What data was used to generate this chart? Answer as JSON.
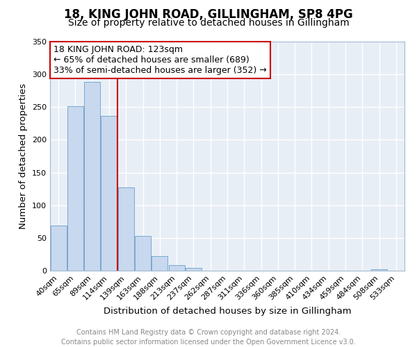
{
  "title": "18, KING JOHN ROAD, GILLINGHAM, SP8 4PG",
  "subtitle": "Size of property relative to detached houses in Gillingham",
  "xlabel": "Distribution of detached houses by size in Gillingham",
  "ylabel": "Number of detached properties",
  "bar_labels": [
    "40sqm",
    "65sqm",
    "89sqm",
    "114sqm",
    "139sqm",
    "163sqm",
    "188sqm",
    "213sqm",
    "237sqm",
    "262sqm",
    "287sqm",
    "311sqm",
    "336sqm",
    "360sqm",
    "385sqm",
    "410sqm",
    "434sqm",
    "459sqm",
    "484sqm",
    "508sqm",
    "533sqm"
  ],
  "bar_values": [
    69,
    251,
    289,
    236,
    127,
    53,
    22,
    9,
    4,
    0,
    0,
    0,
    0,
    0,
    0,
    0,
    0,
    0,
    0,
    2,
    0
  ],
  "bar_color": "#c8d8ee",
  "bar_edgecolor": "#6a9fc8",
  "ylim": [
    0,
    350
  ],
  "yticks": [
    0,
    50,
    100,
    150,
    200,
    250,
    300,
    350
  ],
  "vline_color": "#cc0000",
  "annotation_title": "18 KING JOHN ROAD: 123sqm",
  "annotation_line1": "← 65% of detached houses are smaller (689)",
  "annotation_line2": "33% of semi-detached houses are larger (352) →",
  "annotation_box_edgecolor": "#cc0000",
  "footer1": "Contains HM Land Registry data © Crown copyright and database right 2024.",
  "footer2": "Contains public sector information licensed under the Open Government Licence v3.0.",
  "fig_facecolor": "#ffffff",
  "plot_bg_color": "#e8eef6",
  "title_fontsize": 12,
  "subtitle_fontsize": 10,
  "axis_label_fontsize": 9.5,
  "tick_fontsize": 8,
  "annotation_fontsize": 9,
  "footer_fontsize": 7
}
